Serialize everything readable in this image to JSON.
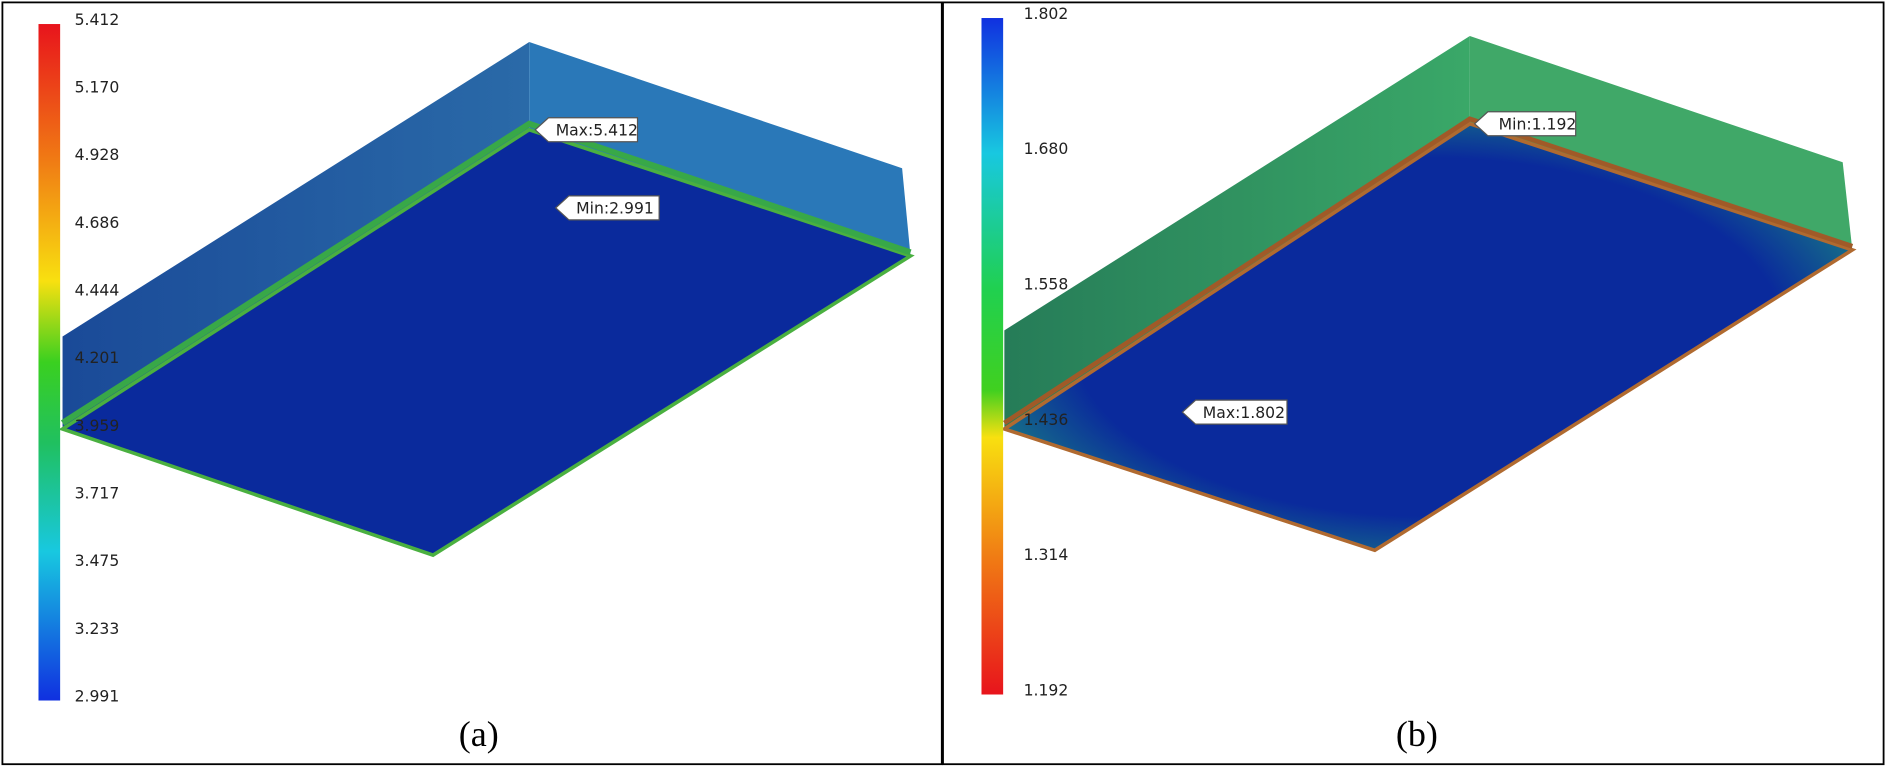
{
  "panels": [
    {
      "scale_labels": [
        "5.412",
        "5.170",
        "4.928",
        "4.686",
        "4.444",
        "4.201",
        "3.959",
        "3.717",
        "3.475",
        "3.233",
        "2.991"
      ],
      "annotations": [
        {
          "label": "Max:5.412"
        },
        {
          "label": "Min:2.991"
        }
      ],
      "caption": "(a)"
    },
    {
      "scale_labels": [
        "1.802",
        "1.680",
        "1.558",
        "1.436",
        "1.314",
        "1.192"
      ],
      "annotations": [
        {
          "label": "Min:1.192"
        },
        {
          "label": "Max:1.802"
        }
      ],
      "caption": "(b)"
    }
  ]
}
